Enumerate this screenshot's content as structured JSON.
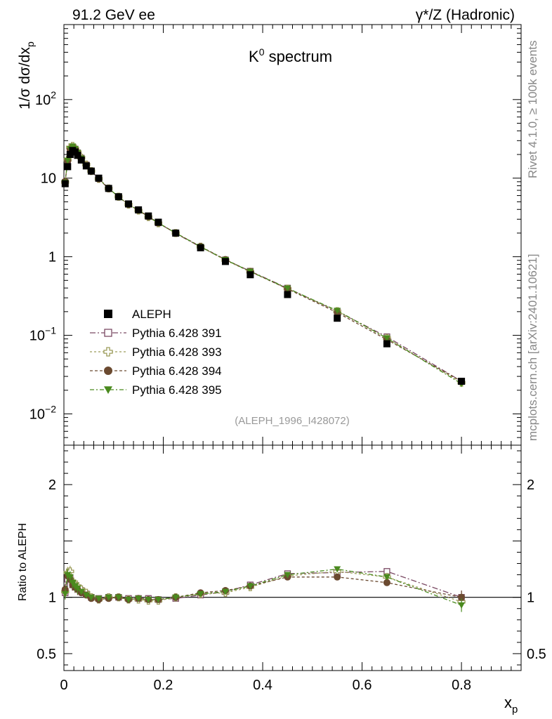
{
  "header": {
    "left": "91.2 GeV ee",
    "right_prefix": "γ*/Z",
    "right_suffix": " (Hadronic)"
  },
  "side": {
    "rivet": "Rivet 4.1.0, ≥ 100k events",
    "mcplots": "mcplots.cern.ch [arXiv:2401.10621]"
  },
  "chart_data": {
    "type": "scatter",
    "title_base": "K",
    "title_sup": "0",
    "title_rest": " spectrum",
    "analysis_id": "(ALEPH_1996_I428072)",
    "ylabel_main": "1/σ  dσ/dx",
    "ylabel_main_sub": "p",
    "ylabel_ratio": "Ratio to ALEPH",
    "xlabel": "x",
    "xlabel_sub": "p",
    "xlim": [
      0,
      0.92
    ],
    "ylim_main": [
      0.004,
      900
    ],
    "ylim_ratio": [
      0.35,
      2.35
    ],
    "log_y_main": true,
    "x_ticks": [
      "0",
      "0.2",
      "0.4",
      "0.6",
      "0.8"
    ],
    "y_ticks_main": [
      {
        "v": 100,
        "base": "10",
        "exp": "2"
      },
      {
        "v": 10,
        "base": "10",
        "exp": ""
      },
      {
        "v": 1,
        "base": "1",
        "exp": ""
      },
      {
        "v": 0.1,
        "base": "10",
        "exp": "−1"
      },
      {
        "v": 0.01,
        "base": "10",
        "exp": "−2"
      }
    ],
    "y_ticks_ratio": [
      "0.5",
      "1",
      "2"
    ],
    "x": [
      0.0025,
      0.0075,
      0.0125,
      0.0175,
      0.0225,
      0.0275,
      0.035,
      0.045,
      0.055,
      0.07,
      0.09,
      0.11,
      0.13,
      0.15,
      0.17,
      0.19,
      0.225,
      0.275,
      0.325,
      0.375,
      0.45,
      0.55,
      0.65,
      0.8
    ],
    "legend": [
      "ALEPH",
      "Pythia 6.428 391",
      "Pythia 6.428 393",
      "Pythia 6.428 394",
      "Pythia 6.428 395"
    ],
    "series": [
      {
        "name": "ALEPH",
        "color": "#000000",
        "marker": "square-filled",
        "values": [
          8.5,
          14.0,
          20.0,
          22.5,
          21.5,
          19.5,
          17.0,
          14.3,
          12.3,
          10.0,
          7.4,
          5.8,
          4.7,
          3.95,
          3.3,
          2.75,
          2.0,
          1.3,
          0.87,
          0.59,
          0.33,
          0.165,
          0.078,
          0.026
        ]
      },
      {
        "name": "Pythia 6.428 391",
        "color": "#7b4a64",
        "marker": "square-open",
        "dash": "8,3,2,3",
        "ratio": [
          1.04,
          1.16,
          1.17,
          1.11,
          1.09,
          1.08,
          1.06,
          1.03,
          1.0,
          0.99,
          1.0,
          1.0,
          0.99,
          0.99,
          0.99,
          0.98,
          0.99,
          1.02,
          1.05,
          1.11,
          1.21,
          1.22,
          1.23,
          1.0
        ]
      },
      {
        "name": "Pythia 6.428 393",
        "color": "#9c9c5a",
        "marker": "cross-open",
        "dash": "3,3",
        "ratio": [
          1.05,
          1.22,
          1.23,
          1.14,
          1.11,
          1.1,
          1.07,
          1.04,
          1.0,
          0.98,
          1.0,
          1.0,
          0.98,
          0.98,
          0.97,
          0.97,
          1.0,
          1.03,
          1.04,
          1.09,
          1.19,
          1.23,
          1.18,
          0.96
        ]
      },
      {
        "name": "Pythia 6.428 394",
        "color": "#6b4a30",
        "marker": "circle-filled",
        "dash": "4,3",
        "ratio": [
          1.07,
          1.19,
          1.16,
          1.11,
          1.09,
          1.07,
          1.04,
          1.02,
          0.99,
          0.98,
          0.99,
          1.0,
          0.98,
          0.99,
          0.98,
          0.98,
          1.0,
          1.04,
          1.06,
          1.1,
          1.18,
          1.18,
          1.13,
          1.0
        ]
      },
      {
        "name": "Pythia 6.428 395",
        "color": "#4a8a1e",
        "marker": "triangle-down-filled",
        "dash": "6,3,2,3",
        "ratio": [
          1.03,
          1.2,
          1.18,
          1.13,
          1.1,
          1.08,
          1.05,
          1.02,
          1.0,
          0.99,
          1.0,
          1.0,
          0.98,
          0.99,
          0.98,
          0.98,
          1.0,
          1.03,
          1.05,
          1.1,
          1.2,
          1.25,
          1.18,
          0.93
        ]
      }
    ]
  }
}
